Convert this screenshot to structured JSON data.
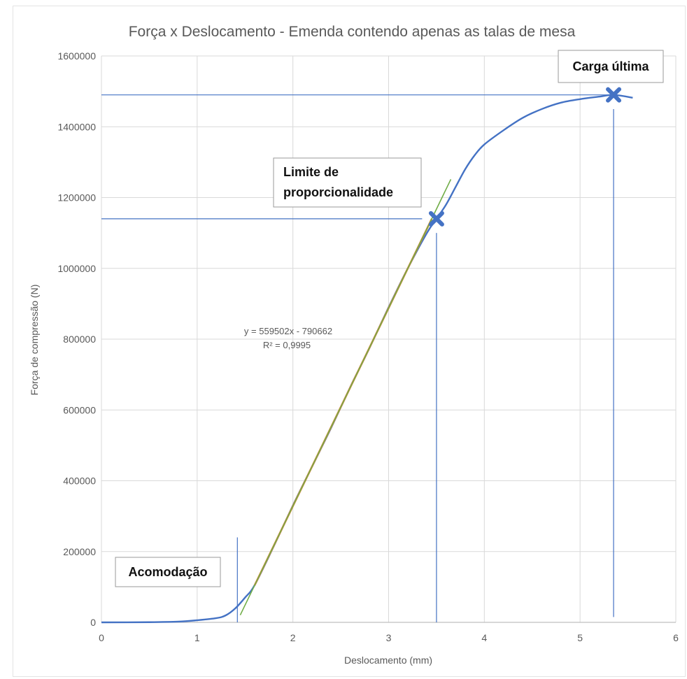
{
  "chart_data": {
    "type": "line",
    "title": "Força x Deslocamento - Emenda contendo apenas as talas de mesa",
    "xlabel": "Deslocamento (mm)",
    "ylabel": "Força de compressão (N)",
    "xlim": [
      0,
      6
    ],
    "ylim": [
      0,
      1600000
    ],
    "x_ticks": [
      "0",
      "1",
      "2",
      "3",
      "4",
      "5",
      "6"
    ],
    "y_ticks": [
      "0",
      "200000",
      "400000",
      "600000",
      "800000",
      "1000000",
      "1200000",
      "1400000",
      "1600000"
    ],
    "grid": true,
    "series": [
      {
        "color": "#4472c4",
        "x": [
          0,
          0.5,
          0.8,
          1.0,
          1.2,
          1.3,
          1.4,
          1.5,
          1.6,
          1.8,
          2.0,
          2.2,
          2.4,
          2.6,
          2.8,
          3.0,
          3.2,
          3.4,
          3.5,
          3.6,
          3.7,
          3.8,
          3.9,
          4.0,
          4.2,
          4.4,
          4.6,
          4.8,
          5.0,
          5.2,
          5.35,
          5.55
        ],
        "y": [
          0,
          500,
          2000,
          6000,
          12000,
          20000,
          40000,
          70000,
          105000,
          215000,
          330000,
          440000,
          550000,
          665000,
          775000,
          890000,
          1000000,
          1100000,
          1140000,
          1180000,
          1230000,
          1280000,
          1320000,
          1350000,
          1390000,
          1425000,
          1450000,
          1468000,
          1478000,
          1485000,
          1490000,
          1482000
        ]
      }
    ],
    "trendline": {
      "color": "#70ad47",
      "highlight_color": "#ed7d31",
      "equation": "y = 559502x - 790662",
      "r2": "R² = 0,9995",
      "slope": 559502,
      "intercept": -790662,
      "x_range": [
        1.45,
        3.65
      ],
      "highlight_range": [
        1.6,
        3.45
      ]
    },
    "markers": [
      {
        "x": 3.5,
        "y": 1140000,
        "color": "#4472c4"
      },
      {
        "x": 5.35,
        "y": 1490000,
        "color": "#4472c4"
      }
    ],
    "reference_lines": {
      "color": "#4472c4",
      "horizontal": [
        {
          "y": 1140000,
          "x_from": 0,
          "x_to": 3.35
        },
        {
          "y": 1490000,
          "x_from": 0,
          "x_to": 5.3
        }
      ],
      "vertical": [
        {
          "x": 1.42,
          "y_from": 0,
          "y_to": 240000
        },
        {
          "x": 3.5,
          "y_from": 0,
          "y_to": 1100000
        },
        {
          "x": 5.35,
          "y_from": 15000,
          "y_to": 1450000
        }
      ]
    },
    "annotations": [
      {
        "id": "carga-ultima",
        "lines": [
          "Carga última"
        ]
      },
      {
        "id": "limite-proporcionalidade",
        "lines": [
          "Limite de",
          "proporcionalidade"
        ]
      },
      {
        "id": "acomodacao",
        "lines": [
          "Acomodação"
        ]
      }
    ]
  }
}
